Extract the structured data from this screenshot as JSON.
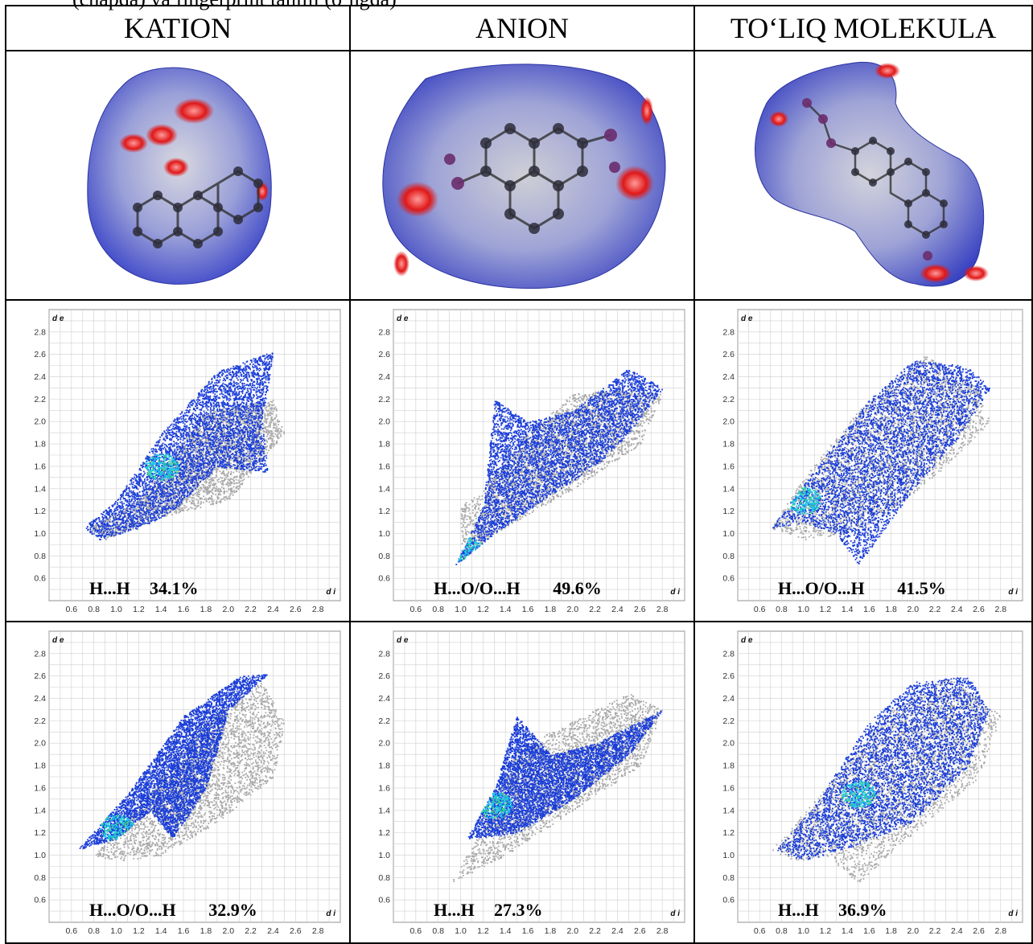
{
  "caption_partial": "(chapda) va fingerprint tahlili (o‘ngda)",
  "columns": [
    "KATION",
    "ANION",
    "TO‘LIQ MOLEKULA"
  ],
  "axis": {
    "x_name": "d i",
    "y_name": "d e"
  },
  "colors": {
    "grey_points": "#a9a9a9",
    "blue_points": "#1a3dd8",
    "cyan_points": "#19c7e6",
    "green_points": "#3fd96a",
    "surface_blue": "#4a55c9",
    "surface_red": "#e01818"
  },
  "chart_data": [
    {
      "type": "scatter",
      "column": "KATION",
      "row": 1,
      "label": "H...H",
      "percent": "34.1%",
      "x_ticks": [
        "0.6",
        "0.8",
        "1.0",
        "1.2",
        "1.4",
        "1.6",
        "1.8",
        "2.0",
        "2.2",
        "2.4",
        "2.6",
        "2.8"
      ],
      "y_ticks": [
        "0.6",
        "0.8",
        "1.0",
        "1.2",
        "1.4",
        "1.6",
        "1.8",
        "2.0",
        "2.2",
        "2.4",
        "2.6",
        "2.8"
      ],
      "xlim": [
        0.4,
        3.0
      ],
      "ylim": [
        0.4,
        3.0
      ],
      "grey_regions": [
        [
          0.75,
          1.05
        ],
        [
          1.2,
          1.3
        ],
        [
          1.8,
          2.1
        ],
        [
          2.4,
          2.2
        ],
        [
          2.5,
          1.9
        ],
        [
          2.0,
          1.3
        ],
        [
          1.4,
          1.15
        ],
        [
          0.9,
          0.95
        ]
      ],
      "blue_regions": [
        [
          0.7,
          1.05
        ],
        [
          1.0,
          1.3
        ],
        [
          1.4,
          1.9
        ],
        [
          1.9,
          2.45
        ],
        [
          2.3,
          2.6
        ],
        [
          2.4,
          2.62
        ],
        [
          2.3,
          2.0
        ],
        [
          2.35,
          1.55
        ],
        [
          1.9,
          1.6
        ],
        [
          1.5,
          1.2
        ],
        [
          1.2,
          1.05
        ],
        [
          0.85,
          0.95
        ]
      ],
      "dense_center": [
        1.4,
        1.6
      ]
    },
    {
      "type": "scatter",
      "column": "ANION",
      "row": 1,
      "label": "H...O/O...H",
      "percent": "49.6%",
      "x_ticks": [
        "0.6",
        "0.8",
        "1.0",
        "1.2",
        "1.4",
        "1.6",
        "1.8",
        "2.0",
        "2.2",
        "2.4",
        "2.6",
        "2.8"
      ],
      "y_ticks": [
        "0.6",
        "0.8",
        "1.0",
        "1.2",
        "1.4",
        "1.6",
        "1.8",
        "2.0",
        "2.2",
        "2.4",
        "2.6",
        "2.8"
      ],
      "xlim": [
        0.4,
        3.0
      ],
      "ylim": [
        0.4,
        3.0
      ],
      "grey_regions": [
        [
          1.0,
          0.75
        ],
        [
          1.0,
          1.25
        ],
        [
          1.2,
          1.4
        ],
        [
          1.6,
          1.9
        ],
        [
          2.0,
          2.25
        ],
        [
          2.5,
          2.3
        ],
        [
          2.8,
          2.25
        ],
        [
          2.6,
          1.8
        ],
        [
          2.0,
          1.4
        ],
        [
          1.3,
          1.0
        ]
      ],
      "blue_regions": [
        [
          0.95,
          0.72
        ],
        [
          1.2,
          1.25
        ],
        [
          1.3,
          2.2
        ],
        [
          1.6,
          2.0
        ],
        [
          2.0,
          2.1
        ],
        [
          2.5,
          2.48
        ],
        [
          2.8,
          2.3
        ],
        [
          2.5,
          1.9
        ],
        [
          2.2,
          1.6
        ],
        [
          1.8,
          1.35
        ],
        [
          1.3,
          1.0
        ]
      ],
      "dense_center": [
        1.05,
        0.85
      ]
    },
    {
      "type": "scatter",
      "column": "TO‘LIQ MOLEKULA",
      "row": 1,
      "label": "H...O/O...H",
      "percent": "41.5%",
      "x_ticks": [
        "0.6",
        "0.8",
        "1.0",
        "1.2",
        "1.4",
        "1.6",
        "1.8",
        "2.0",
        "2.2",
        "2.4",
        "2.6",
        "2.8"
      ],
      "y_ticks": [
        "0.6",
        "0.8",
        "1.0",
        "1.2",
        "1.4",
        "1.6",
        "1.8",
        "2.0",
        "2.2",
        "2.4",
        "2.6",
        "2.8"
      ],
      "xlim": [
        0.4,
        3.0
      ],
      "ylim": [
        0.4,
        3.0
      ],
      "grey_regions": [
        [
          0.7,
          1.05
        ],
        [
          1.0,
          1.5
        ],
        [
          1.5,
          2.1
        ],
        [
          2.1,
          2.6
        ],
        [
          2.6,
          2.3
        ],
        [
          2.7,
          2.0
        ],
        [
          2.3,
          1.6
        ],
        [
          1.8,
          1.2
        ],
        [
          1.4,
          1.0
        ],
        [
          1.0,
          0.95
        ]
      ],
      "blue_regions": [
        [
          0.7,
          1.05
        ],
        [
          1.2,
          1.7
        ],
        [
          1.6,
          2.2
        ],
        [
          2.0,
          2.55
        ],
        [
          2.5,
          2.5
        ],
        [
          2.7,
          2.3
        ],
        [
          2.4,
          1.85
        ],
        [
          2.0,
          1.4
        ],
        [
          1.5,
          0.72
        ],
        [
          1.3,
          1.0
        ],
        [
          1.0,
          1.1
        ]
      ],
      "dense_center": [
        1.0,
        1.3
      ]
    },
    {
      "type": "scatter",
      "column": "KATION",
      "row": 2,
      "label": "H...O/O...H",
      "percent": "32.9%",
      "x_ticks": [
        "0.6",
        "0.8",
        "1.0",
        "1.2",
        "1.4",
        "1.6",
        "1.8",
        "2.0",
        "2.2",
        "2.4",
        "2.6",
        "2.8"
      ],
      "y_ticks": [
        "0.6",
        "0.8",
        "1.0",
        "1.2",
        "1.4",
        "1.6",
        "1.8",
        "2.0",
        "2.2",
        "2.4",
        "2.6",
        "2.8"
      ],
      "xlim": [
        0.4,
        3.0
      ],
      "ylim": [
        0.4,
        3.0
      ],
      "grey_regions": [
        [
          0.8,
          1.0
        ],
        [
          1.2,
          1.45
        ],
        [
          1.8,
          2.2
        ],
        [
          2.3,
          2.55
        ],
        [
          2.5,
          2.2
        ],
        [
          2.4,
          1.7
        ],
        [
          1.9,
          1.3
        ],
        [
          1.4,
          1.0
        ],
        [
          1.0,
          0.95
        ]
      ],
      "blue_regions": [
        [
          0.65,
          1.05
        ],
        [
          1.1,
          1.55
        ],
        [
          1.6,
          2.25
        ],
        [
          2.1,
          2.6
        ],
        [
          2.35,
          2.62
        ],
        [
          2.0,
          2.3
        ],
        [
          1.8,
          1.6
        ],
        [
          1.5,
          1.15
        ],
        [
          1.3,
          1.4
        ],
        [
          1.0,
          1.15
        ]
      ],
      "dense_center": [
        1.0,
        1.25
      ]
    },
    {
      "type": "scatter",
      "column": "ANION",
      "row": 2,
      "label": "H...H",
      "percent": "27.3%",
      "x_ticks": [
        "0.6",
        "0.8",
        "1.0",
        "1.2",
        "1.4",
        "1.6",
        "1.8",
        "2.0",
        "2.2",
        "2.4",
        "2.6",
        "2.8"
      ],
      "y_ticks": [
        "0.6",
        "0.8",
        "1.0",
        "1.2",
        "1.4",
        "1.6",
        "1.8",
        "2.0",
        "2.2",
        "2.4",
        "2.6",
        "2.8"
      ],
      "xlim": [
        0.4,
        3.0
      ],
      "ylim": [
        0.4,
        3.0
      ],
      "grey_regions": [
        [
          0.9,
          0.75
        ],
        [
          1.2,
          1.25
        ],
        [
          1.5,
          1.95
        ],
        [
          2.0,
          2.2
        ],
        [
          2.5,
          2.45
        ],
        [
          2.8,
          2.3
        ],
        [
          2.6,
          1.8
        ],
        [
          2.0,
          1.4
        ],
        [
          1.4,
          1.0
        ]
      ],
      "blue_regions": [
        [
          1.05,
          1.15
        ],
        [
          1.3,
          1.6
        ],
        [
          1.5,
          2.25
        ],
        [
          1.8,
          1.9
        ],
        [
          2.2,
          2.0
        ],
        [
          2.8,
          2.3
        ],
        [
          2.5,
          1.9
        ],
        [
          2.0,
          1.5
        ],
        [
          1.5,
          1.2
        ]
      ],
      "dense_center": [
        1.3,
        1.45
      ]
    },
    {
      "type": "scatter",
      "column": "TO‘LIQ MOLEKULA",
      "row": 2,
      "label": "H...H",
      "percent": "36.9%",
      "x_ticks": [
        "0.6",
        "0.8",
        "1.0",
        "1.2",
        "1.4",
        "1.6",
        "1.8",
        "2.0",
        "2.2",
        "2.4",
        "2.6",
        "2.8"
      ],
      "y_ticks": [
        "0.6",
        "0.8",
        "1.0",
        "1.2",
        "1.4",
        "1.6",
        "1.8",
        "2.0",
        "2.2",
        "2.4",
        "2.6",
        "2.8"
      ],
      "xlim": [
        0.4,
        3.0
      ],
      "ylim": [
        0.4,
        3.0
      ],
      "grey_regions": [
        [
          0.7,
          1.05
        ],
        [
          1.2,
          1.6
        ],
        [
          1.8,
          2.3
        ],
        [
          2.3,
          2.6
        ],
        [
          2.8,
          2.25
        ],
        [
          2.6,
          1.7
        ],
        [
          2.0,
          1.2
        ],
        [
          1.5,
          0.75
        ],
        [
          1.2,
          1.0
        ],
        [
          0.9,
          0.95
        ]
      ],
      "blue_regions": [
        [
          0.75,
          1.05
        ],
        [
          1.1,
          1.45
        ],
        [
          1.6,
          2.2
        ],
        [
          2.0,
          2.55
        ],
        [
          2.5,
          2.6
        ],
        [
          2.7,
          2.3
        ],
        [
          2.5,
          1.8
        ],
        [
          2.0,
          1.3
        ],
        [
          1.5,
          1.1
        ],
        [
          1.0,
          0.95
        ]
      ],
      "dense_center": [
        1.5,
        1.55
      ]
    }
  ]
}
